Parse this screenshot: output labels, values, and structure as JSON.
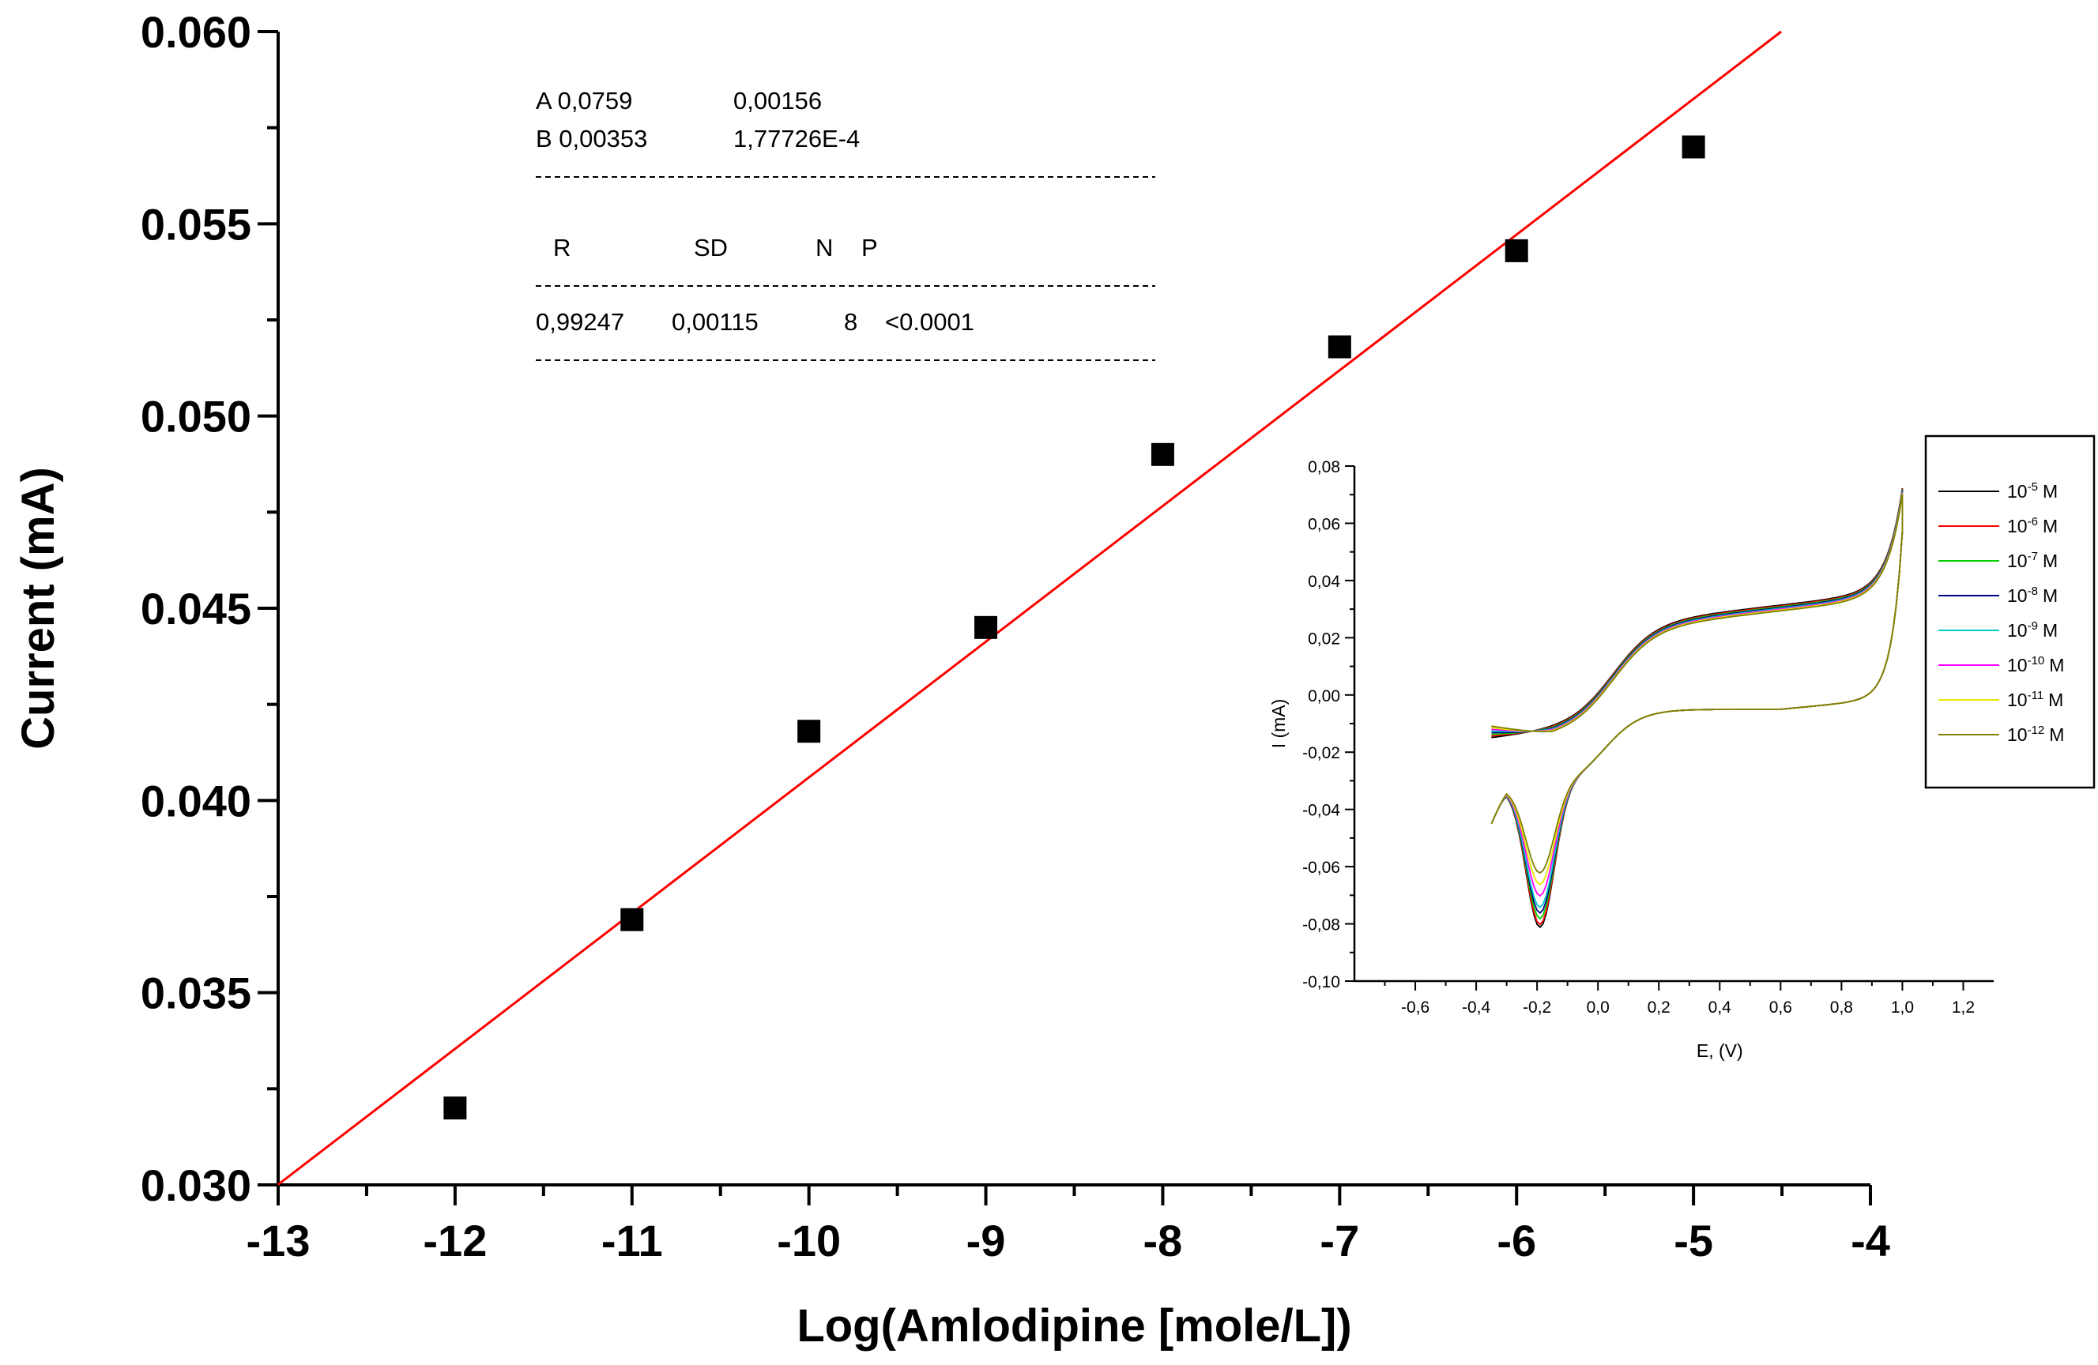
{
  "chart_data": [
    {
      "type": "scatter",
      "xlabel": "Log(Amlodipine [mole/L])",
      "ylabel": "Current (mA)",
      "xlim": [
        -13,
        -4
      ],
      "ylim": [
        0.03,
        0.06
      ],
      "x_ticks": [
        "-13",
        "-12",
        "-11",
        "-10",
        "-9",
        "-8",
        "-7",
        "-6",
        "-5",
        "-4"
      ],
      "y_ticks": [
        "0.030",
        "0.035",
        "0.040",
        "0.045",
        "0.050",
        "0.055",
        "0.060"
      ],
      "points": [
        {
          "x": -12,
          "y": 0.032
        },
        {
          "x": -11,
          "y": 0.0369
        },
        {
          "x": -10,
          "y": 0.0418
        },
        {
          "x": -9,
          "y": 0.0445
        },
        {
          "x": -8,
          "y": 0.049
        },
        {
          "x": -7,
          "y": 0.0518
        },
        {
          "x": -6,
          "y": 0.0543
        },
        {
          "x": -5,
          "y": 0.057
        }
      ],
      "fit": {
        "intercept": 0.0759,
        "slope": 0.00353,
        "color": "#ff0000"
      },
      "fit_table": {
        "row_a": {
          "label": "A 0,0759",
          "error": "0,00156"
        },
        "row_b": {
          "label": "B 0,00353",
          "error": "1,77726E-4"
        },
        "headers": [
          "R",
          "SD",
          "N",
          "P"
        ],
        "values": [
          "0,99247",
          "0,00115",
          "8",
          "<0.0001"
        ]
      },
      "grid": false,
      "marker": "square",
      "marker_color": "#000000"
    },
    {
      "type": "line",
      "xlabel": "E, (V)",
      "ylabel": "I (mA)",
      "xlim": [
        -0.8,
        1.3
      ],
      "ylim": [
        -0.1,
        0.08
      ],
      "x_ticks": [
        "-0,6",
        "-0,4",
        "-0,2",
        "0,0",
        "0,2",
        "0,4",
        "0,6",
        "0,8",
        "1,0",
        "1,2"
      ],
      "y_ticks": [
        "0,08",
        "0,06",
        "0,04",
        "0,02",
        "0,00",
        "-0,02",
        "-0,04",
        "-0,06",
        "-0,08",
        "-0,10"
      ],
      "legend_position": "right",
      "series": [
        {
          "name": "10",
          "exp": "-5",
          "unit": "M",
          "color": "#000000",
          "peak": -0.084
        },
        {
          "name": "10",
          "exp": "-6",
          "unit": "M",
          "color": "#ff0000",
          "peak": -0.083
        },
        {
          "name": "10",
          "exp": "-7",
          "unit": "M",
          "color": "#00cc00",
          "peak": -0.081
        },
        {
          "name": "10",
          "exp": "-8",
          "unit": "M",
          "color": "#000080",
          "peak": -0.079
        },
        {
          "name": "10",
          "exp": "-9",
          "unit": "M",
          "color": "#00cccc",
          "peak": -0.077
        },
        {
          "name": "10",
          "exp": "-10",
          "unit": "M",
          "color": "#ff00ff",
          "peak": -0.073
        },
        {
          "name": "10",
          "exp": "-11",
          "unit": "M",
          "color": "#e8e800",
          "peak": -0.069
        },
        {
          "name": "10",
          "exp": "-12",
          "unit": "M",
          "color": "#808000",
          "peak": -0.065
        }
      ]
    }
  ]
}
